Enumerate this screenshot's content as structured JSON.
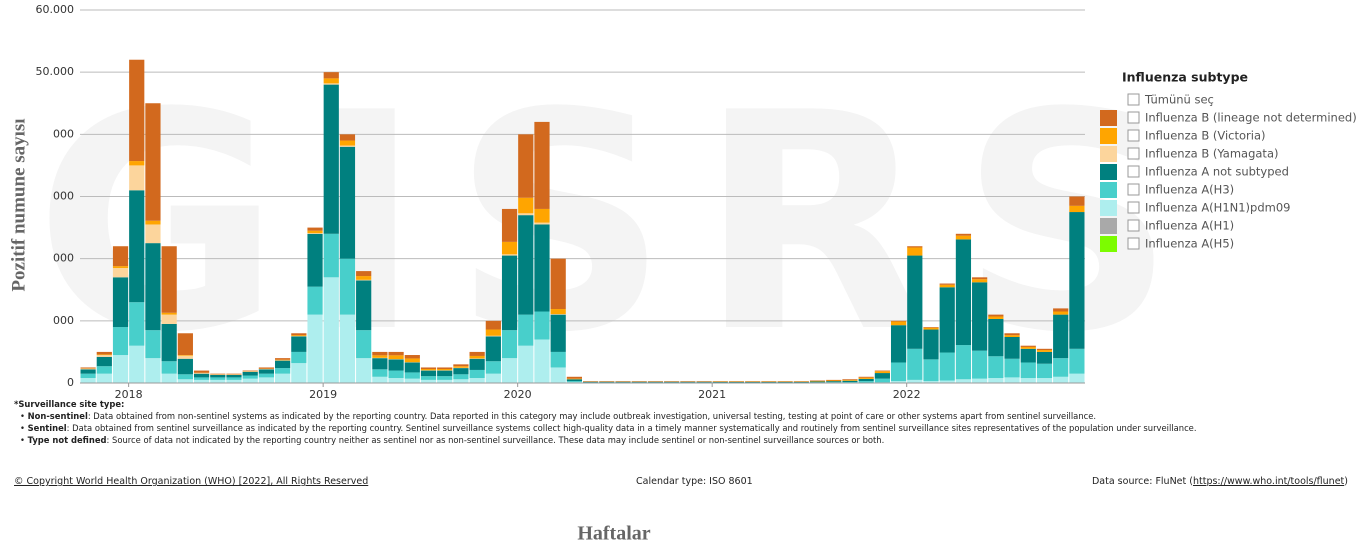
{
  "chart_data": {
    "type": "stacked_bar",
    "watermark": "GISRS",
    "y_axis_title": "Pozitif numune sayısı",
    "x_axis_title": "Haftalar",
    "legend_title": "Influenza subtype",
    "select_all": "Tümünü seç",
    "grid": true,
    "legend_position": "right",
    "ylim": [
      0,
      60000
    ],
    "yticks": [
      0,
      {
        "value": 10000,
        "label": "000"
      },
      {
        "value": 20000,
        "label": "000"
      },
      {
        "value": 30000,
        "label": "000"
      },
      {
        "value": 40000,
        "label": "000"
      },
      {
        "value": 50000,
        "label": "50.000"
      },
      {
        "value": 60000,
        "label": "60.000"
      }
    ],
    "categories": [
      null,
      null,
      null,
      "2018",
      null,
      null,
      null,
      null,
      null,
      null,
      null,
      null,
      null,
      null,
      null,
      "2019",
      null,
      null,
      null,
      null,
      null,
      null,
      null,
      null,
      null,
      null,
      null,
      "2020",
      null,
      null,
      null,
      null,
      null,
      null,
      null,
      null,
      null,
      null,
      null,
      "2021",
      null,
      null,
      null,
      null,
      null,
      null,
      null,
      null,
      null,
      null,
      null,
      "2022",
      null,
      null,
      null,
      null,
      null,
      null,
      null,
      null,
      null,
      null
    ],
    "series": [
      {
        "name": "Influenza B (lineage not determined)",
        "color": "#d2691e",
        "values": [
          150,
          400,
          3200,
          16300,
          18900,
          10700,
          3500,
          350,
          100,
          100,
          100,
          200,
          250,
          300,
          500,
          1000,
          1000,
          800,
          550,
          550,
          550,
          250,
          250,
          300,
          650,
          1400,
          5300,
          10200,
          14000,
          8100,
          300,
          70,
          70,
          70,
          70,
          70,
          70,
          70,
          70,
          60,
          60,
          60,
          60,
          60,
          60,
          80,
          100,
          120,
          140,
          100,
          100,
          200,
          100,
          200,
          300,
          300,
          300,
          300,
          200,
          200,
          500,
          1500
        ]
      },
      {
        "name": "Influenza B (Victoria)",
        "color": "#ffa500",
        "values": [
          50,
          100,
          300,
          700,
          600,
          300,
          100,
          50,
          50,
          50,
          50,
          50,
          100,
          150,
          400,
          800,
          800,
          600,
          400,
          600,
          600,
          200,
          200,
          250,
          400,
          1000,
          2000,
          2500,
          2200,
          800,
          100,
          30,
          30,
          30,
          30,
          30,
          30,
          30,
          30,
          50,
          50,
          50,
          50,
          50,
          50,
          80,
          100,
          120,
          200,
          300,
          600,
          1300,
          300,
          400,
          600,
          500,
          400,
          300,
          300,
          300,
          500,
          1000
        ]
      },
      {
        "name": "Influenza B (Yamagata)",
        "color": "#fcd59c",
        "values": [
          100,
          300,
          1500,
          4000,
          3000,
          1500,
          500,
          100,
          50,
          50,
          50,
          50,
          50,
          50,
          100,
          200,
          200,
          100,
          50,
          50,
          50,
          50,
          50,
          50,
          50,
          100,
          200,
          300,
          300,
          100,
          0,
          0,
          0,
          0,
          0,
          0,
          0,
          0,
          0,
          0,
          0,
          0,
          0,
          0,
          0,
          0,
          0,
          0,
          0,
          0,
          0,
          0,
          0,
          0,
          0,
          0,
          0,
          0,
          0,
          0,
          0,
          0
        ]
      },
      {
        "name": "Influenza A not subtyped",
        "color": "#00807f",
        "values": [
          700,
          1500,
          8000,
          18000,
          14000,
          6000,
          2500,
          600,
          400,
          400,
          600,
          700,
          1200,
          2500,
          8500,
          24000,
          18000,
          8000,
          1800,
          1800,
          1600,
          900,
          900,
          1000,
          1800,
          4000,
          12000,
          16000,
          14000,
          6000,
          300,
          100,
          100,
          100,
          100,
          100,
          100,
          100,
          100,
          100,
          100,
          100,
          100,
          100,
          100,
          130,
          160,
          200,
          350,
          900,
          6000,
          15000,
          4800,
          10500,
          17000,
          11000,
          6000,
          3500,
          2200,
          1900,
          7000,
          22000
        ]
      },
      {
        "name": "Influenza A(H3)",
        "color": "#48cfcb",
        "values": [
          700,
          1200,
          4500,
          7000,
          4500,
          2000,
          800,
          400,
          400,
          400,
          500,
          600,
          900,
          1800,
          4500,
          7000,
          9000,
          4500,
          1200,
          1200,
          1000,
          600,
          600,
          800,
          1300,
          2000,
          4500,
          5000,
          4500,
          2500,
          150,
          50,
          50,
          50,
          50,
          50,
          50,
          50,
          50,
          60,
          60,
          60,
          60,
          60,
          60,
          80,
          100,
          120,
          250,
          600,
          3000,
          5000,
          3500,
          4500,
          5500,
          4500,
          3500,
          3000,
          2500,
          2300,
          3000,
          4000
        ]
      },
      {
        "name": "Influenza A(H1N1)pdm09",
        "color": "#aeeeee",
        "values": [
          800,
          1500,
          4500,
          6000,
          4000,
          1500,
          600,
          500,
          500,
          500,
          700,
          900,
          1500,
          3200,
          11000,
          17000,
          11000,
          4000,
          1000,
          800,
          700,
          500,
          500,
          600,
          800,
          1500,
          4000,
          6000,
          7000,
          2500,
          150,
          50,
          50,
          50,
          50,
          50,
          50,
          50,
          50,
          30,
          30,
          30,
          30,
          30,
          30,
          30,
          40,
          40,
          60,
          100,
          300,
          500,
          300,
          400,
          600,
          700,
          800,
          900,
          800,
          800,
          1000,
          1500
        ]
      },
      {
        "name": "Influenza A(H1)",
        "color": "#a9a9a9",
        "values": [
          0,
          0,
          0,
          0,
          0,
          0,
          0,
          0,
          0,
          0,
          0,
          0,
          0,
          0,
          0,
          0,
          0,
          0,
          0,
          0,
          0,
          0,
          0,
          0,
          0,
          0,
          0,
          0,
          0,
          0,
          0,
          0,
          0,
          0,
          0,
          0,
          0,
          0,
          0,
          0,
          0,
          0,
          0,
          0,
          0,
          0,
          0,
          0,
          0,
          0,
          0,
          0,
          0,
          0,
          0,
          0,
          0,
          0,
          0,
          0,
          0,
          0
        ]
      },
      {
        "name": "Influenza A(H5)",
        "color": "#7cfc00",
        "values": [
          0,
          0,
          0,
          0,
          0,
          0,
          0,
          0,
          0,
          0,
          0,
          0,
          0,
          0,
          0,
          0,
          0,
          0,
          0,
          0,
          0,
          0,
          0,
          0,
          0,
          0,
          0,
          0,
          0,
          0,
          0,
          0,
          0,
          0,
          0,
          0,
          0,
          0,
          0,
          0,
          0,
          0,
          0,
          0,
          0,
          0,
          0,
          0,
          0,
          0,
          0,
          0,
          0,
          0,
          0,
          0,
          0,
          0,
          0,
          0,
          0,
          0
        ]
      }
    ]
  },
  "footnotes": {
    "heading": "*Surveillance site type:",
    "items": [
      {
        "term": "Non-sentinel",
        "text": ": Data obtained from non-sentinel systems as indicated by the reporting country. Data reported in this category may include outbreak investigation, universal testing, testing at point of care or other systems apart from sentinel surveillance."
      },
      {
        "term": "Sentinel",
        "text": ": Data obtained from sentinel surveillance as indicated by the reporting country. Sentinel surveillance systems collect high-quality data in a timely manner systematically and routinely from sentinel surveillance sites representatives of the population under surveillance."
      },
      {
        "term": "Type not defined",
        "text": ": Source of data not indicated by the reporting country neither as sentinel nor as non-sentinel surveillance. These data may include sentinel or non-sentinel surveillance sources or both."
      }
    ]
  },
  "footer": {
    "copyright": "© Copyright World Health Organization (WHO) [2022], All Rights Reserved",
    "calendar": "Calendar type: ISO 8601",
    "source_prefix": "Data source: FluNet (",
    "source_url": "https://www.who.int/tools/flunet",
    "source_suffix": ")"
  }
}
